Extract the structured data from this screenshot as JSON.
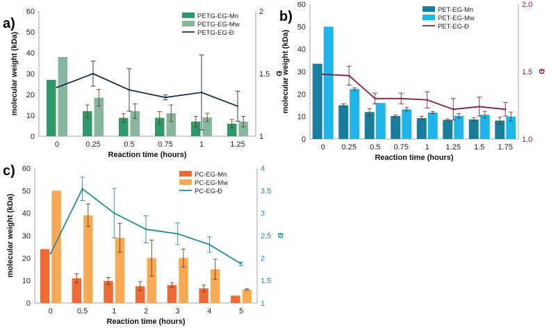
{
  "chart_data": [
    {
      "id": "a",
      "panel_label": "a)",
      "type": "bar",
      "categories": [
        "0",
        "0.25",
        "0.5",
        "0.75",
        "1",
        "1.25"
      ],
      "xlabel": "Reaction time (hours)",
      "ylabel": "molecular weight (kDa)",
      "y2label": "Đ",
      "ylim": [
        0,
        60
      ],
      "yticks": [
        0,
        10,
        20,
        30,
        40,
        50,
        60
      ],
      "y2lim": [
        1,
        2
      ],
      "y2ticks": [
        "1",
        "1.5",
        "2"
      ],
      "y2tick_values": [
        1,
        1.5,
        2
      ],
      "y2_color": "#222222",
      "legend": [
        "PETG-EG-Mn",
        "PETG-EG-Mw",
        "PETG-EG-Đ"
      ],
      "series": [
        {
          "name": "PETG-EG-Mn",
          "kind": "bar",
          "color": "#2e9a6c",
          "values": [
            27,
            12,
            8.8,
            8.8,
            7,
            6
          ],
          "errors": [
            0,
            3,
            2,
            3,
            2.5,
            2
          ]
        },
        {
          "name": "PETG-EG-Mw",
          "kind": "bar",
          "color": "#86b69d",
          "values": [
            38,
            18.5,
            12,
            11,
            9,
            7
          ],
          "errors": [
            0,
            4,
            3.5,
            4,
            2,
            2.5
          ]
        },
        {
          "name": "PETG-EG-Đ",
          "kind": "line",
          "axis": "right",
          "color": "#1a2a44",
          "values": [
            1.39,
            1.5,
            1.37,
            1.31,
            1.35,
            1.24
          ],
          "errors": [
            0,
            0.1,
            0.17,
            0.02,
            0.3,
            0.12
          ]
        }
      ]
    },
    {
      "id": "b",
      "panel_label": "b)",
      "type": "bar",
      "categories": [
        "0",
        "0.25",
        "0.5",
        "0.75",
        "1",
        "1.25",
        "1.5",
        "1.75"
      ],
      "xlabel": "Reaction time (hours)",
      "ylabel": "molecular weight (kDa)",
      "y2label": "Đ",
      "ylim": [
        0,
        60
      ],
      "yticks": [
        0,
        10,
        20,
        30,
        40,
        50,
        60
      ],
      "y2lim": [
        1,
        2
      ],
      "y2ticks": [
        "1.0",
        "1.5",
        "2.0"
      ],
      "y2tick_values": [
        1,
        1.5,
        2
      ],
      "y2_color": "#8b1a3a",
      "legend": [
        "PET-EG-Mn",
        "PET-EG-Mw",
        "PET-EG-Đ"
      ],
      "series": [
        {
          "name": "PET-EG-Mn",
          "kind": "bar",
          "color": "#197e9e",
          "values": [
            33.5,
            15,
            12,
            10.2,
            9.3,
            8.5,
            8.7,
            8.2
          ],
          "errors": [
            0,
            0.6,
            1.5,
            0.5,
            0.8,
            0.4,
            0.8,
            1.5
          ]
        },
        {
          "name": "PET-EG-Mw",
          "kind": "bar",
          "color": "#1fb4ea",
          "values": [
            50,
            22.2,
            16,
            13.2,
            11.8,
            10.3,
            10.8,
            10
          ],
          "errors": [
            0,
            0.5,
            0,
            0.8,
            0.5,
            1,
            1.5,
            2
          ]
        },
        {
          "name": "PET-EG-Đ",
          "kind": "line",
          "axis": "right",
          "color": "#8b1a3a",
          "values": [
            1.48,
            1.47,
            1.3,
            1.3,
            1.29,
            1.22,
            1.24,
            1.22
          ],
          "errors": [
            0,
            0.07,
            0.04,
            0.04,
            0.06,
            0.08,
            0.07,
            0.05
          ]
        }
      ]
    },
    {
      "id": "c",
      "panel_label": "c)",
      "type": "bar",
      "categories": [
        "0",
        "0.5",
        "1",
        "2",
        "3",
        "4",
        "5"
      ],
      "xlabel": "Reaction time (hours)",
      "ylabel": "molecular weight (kDa)",
      "y2label": "Đ",
      "ylim": [
        0,
        60
      ],
      "yticks": [
        0,
        10,
        20,
        30,
        40,
        50,
        60
      ],
      "y2lim": [
        1,
        4
      ],
      "y2ticks": [
        "1",
        "1.5",
        "2",
        "2.5",
        "3",
        "3.5",
        "4"
      ],
      "y2tick_values": [
        1,
        1.5,
        2,
        2.5,
        3,
        3.5,
        4
      ],
      "y2_color": "#1e8c9a",
      "legend": [
        "PC-EG-Mn",
        "PC-EG-Mw",
        "PC-EG-Đ"
      ],
      "series": [
        {
          "name": "PC-EG-Mn",
          "kind": "bar",
          "color": "#f06a35",
          "values": [
            24,
            11,
            9.8,
            7.5,
            8,
            6.5,
            3.3
          ],
          "errors": [
            0,
            2,
            1.5,
            2,
            1,
            1.5,
            0
          ]
        },
        {
          "name": "PC-EG-Mw",
          "kind": "bar",
          "color": "#f7a954",
          "values": [
            50,
            39,
            29,
            20,
            20,
            15,
            6
          ],
          "errors": [
            0,
            5,
            6.5,
            8,
            4,
            4.5,
            0.3
          ]
        },
        {
          "name": "PC-EG-Đ",
          "kind": "line",
          "axis": "right",
          "color": "#1e8c9a",
          "values": [
            2.1,
            3.54,
            3,
            2.64,
            2.54,
            2.3,
            1.87
          ],
          "errors": [
            0,
            0.26,
            0.55,
            0.3,
            0.24,
            0.17,
            0.04
          ]
        }
      ]
    }
  ]
}
